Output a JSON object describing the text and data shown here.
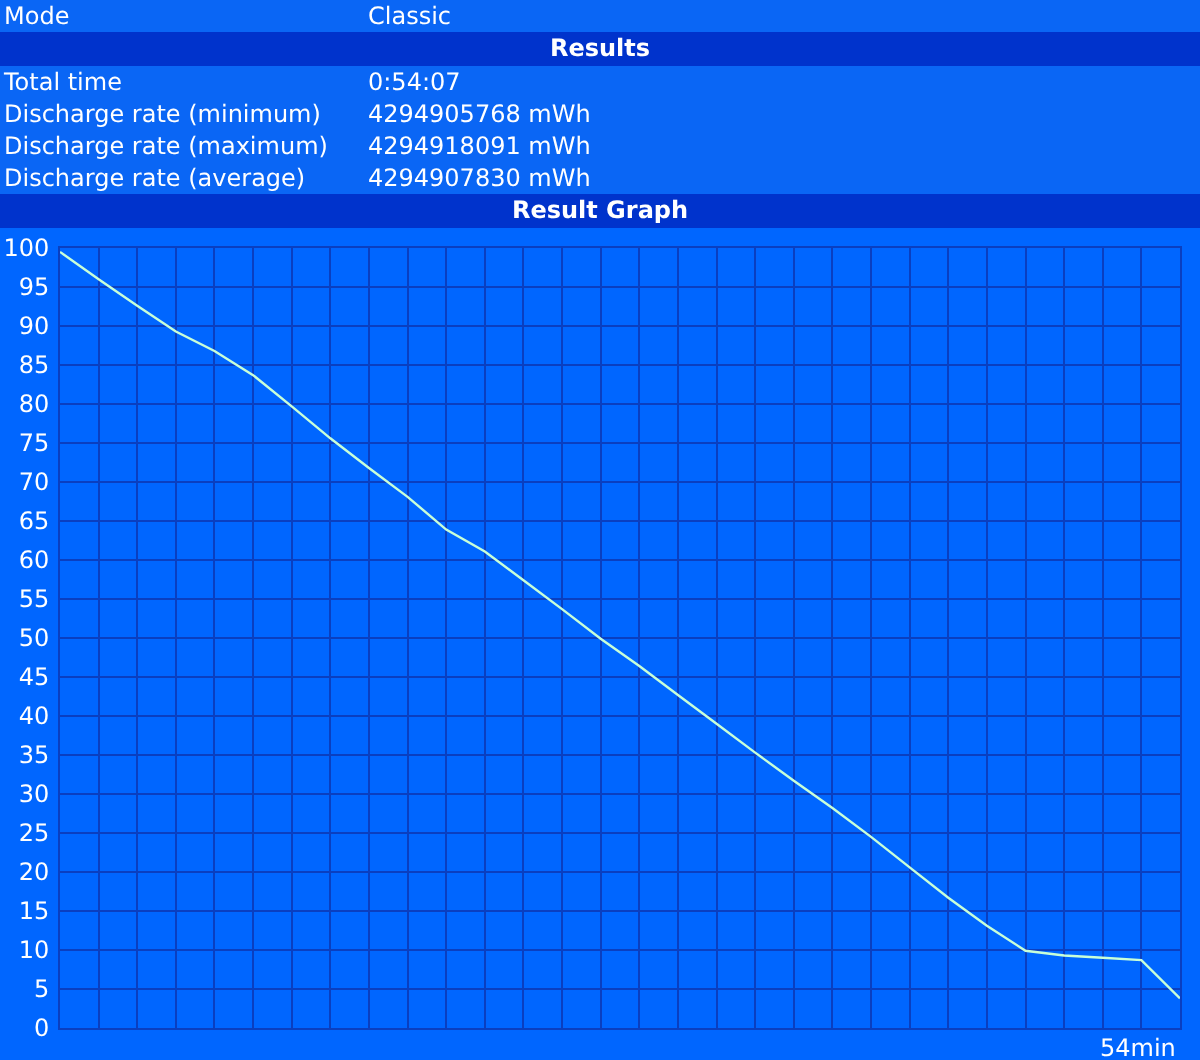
{
  "chart_data": {
    "type": "line",
    "title": "Result Graph",
    "subtitle": "Results",
    "annotations": [
      "Mode",
      "Classic",
      "Total time",
      "0:54:07",
      "Discharge rate (minimum)",
      "4294905768 mWh",
      "Discharge rate (maximum)",
      "4294918091 mWh",
      "Discharge rate (average)",
      "4294907830 mWh",
      "54min"
    ],
    "categories": [
      null,
      null,
      null,
      null,
      null,
      null,
      null,
      null,
      null,
      null,
      null,
      null,
      null,
      null,
      null,
      null,
      null,
      null,
      null,
      null,
      null,
      null,
      null,
      null,
      null,
      null,
      null,
      null,
      null,
      null
    ],
    "series": [
      {
        "color": "#c8ffd8",
        "values": [
          99.5,
          96.0,
          92.6,
          89.3,
          86.8,
          83.7,
          79.7,
          75.6,
          71.8,
          68.1,
          63.9,
          61.1,
          57.4,
          53.7,
          49.9,
          46.4,
          42.7,
          39.0,
          35.3,
          31.7,
          28.2,
          24.5,
          20.6,
          16.7,
          13.1,
          9.9,
          9.3,
          9.0,
          8.7,
          3.8
        ]
      }
    ],
    "ylim": [
      0,
      100
    ],
    "yticks": [
      0,
      5,
      10,
      15,
      20,
      25,
      30,
      35,
      40,
      45,
      50,
      55,
      60,
      65,
      70,
      75,
      80,
      85,
      90,
      95,
      100
    ],
    "grid": true,
    "legend": false,
    "marker": "none",
    "line_style": "solid"
  }
}
